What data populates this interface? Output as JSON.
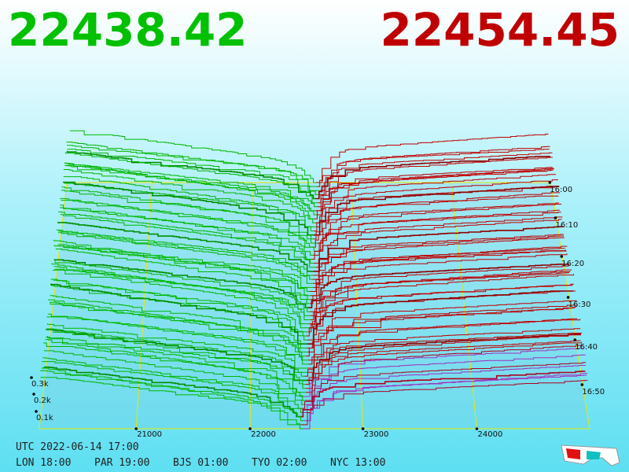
{
  "header": {
    "bid": "22438.42",
    "ask": "22454.45"
  },
  "price_axis": [
    "21000",
    "22000",
    "23000",
    "24000"
  ],
  "time_axis": [
    "16:00",
    "16:10",
    "16:20",
    "16:30",
    "16:40",
    "16:50"
  ],
  "depth_axis": [
    "0.1k",
    "0.2k",
    "0.3k"
  ],
  "footer": {
    "utc": "UTC 2022-06-14 17:00",
    "cities": [
      "LON 18:00",
      "PAR 19:00",
      "BJS 01:00",
      "TYO 02:00",
      "NYC 13:00"
    ]
  }
}
